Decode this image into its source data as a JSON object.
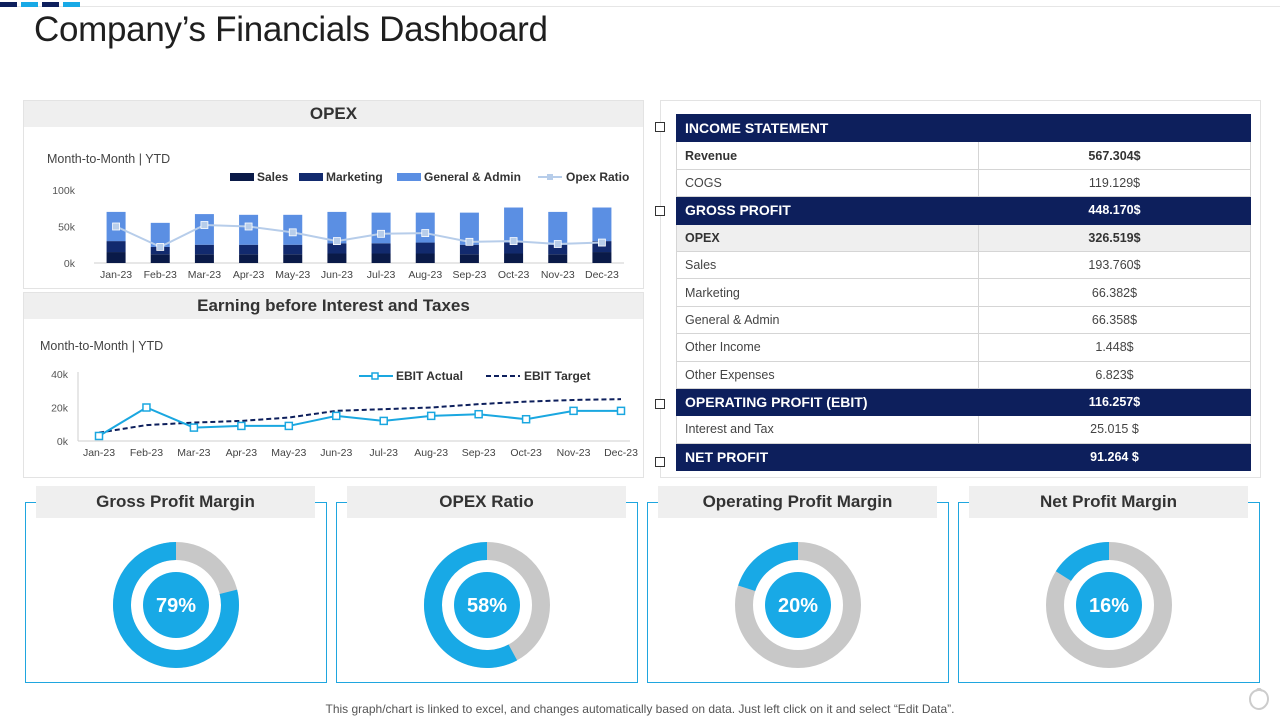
{
  "page": {
    "title": "Company’s Financials Dashboard",
    "footer": "This graph/chart is linked to excel,  and changes automatically based on data. Just left click on it and select “Edit Data”."
  },
  "colors": {
    "navy": "#0d1f5c",
    "sales": "#0a1a48",
    "marketing": "#122a6e",
    "general_admin": "#5b8fe3",
    "opex_ratio": "#b7cdea",
    "cyan": "#1aa7e0",
    "ring_bg": "#c8c8c8",
    "ring_fg": "#18a9e6"
  },
  "opex_panel": {
    "title": "OPEX",
    "subtitle": "Month-to-Month  | YTD"
  },
  "ebit_panel": {
    "title": "Earning before Interest  and Taxes",
    "subtitle": "Month-to-Month  | YTD"
  },
  "chart_data": [
    {
      "id": "opex",
      "type": "bar",
      "title": "OPEX",
      "categories": [
        "Jan-23",
        "Feb-23",
        "Mar-23",
        "Apr-23",
        "May-23",
        "Jun-23",
        "Jul-23",
        "Aug-23",
        "Sep-23",
        "Oct-23",
        "Nov-23",
        "Dec-23"
      ],
      "series": [
        {
          "name": "Sales",
          "kind": "stacked-bar",
          "values": [
            15,
            12,
            12,
            12,
            12,
            13,
            13,
            13,
            12,
            13,
            12,
            15
          ]
        },
        {
          "name": "Marketing",
          "kind": "stacked-bar",
          "values": [
            15,
            10,
            13,
            13,
            13,
            14,
            14,
            15,
            13,
            15,
            13,
            15
          ]
        },
        {
          "name": "General & Admin",
          "kind": "stacked-bar",
          "values": [
            40,
            33,
            42,
            41,
            41,
            43,
            42,
            41,
            44,
            48,
            45,
            46
          ]
        },
        {
          "name": "Opex Ratio",
          "kind": "line",
          "values": [
            50,
            22,
            52,
            50,
            42,
            30,
            40,
            41,
            29,
            30,
            26,
            28
          ]
        }
      ],
      "yticks": [
        "0k",
        "50k",
        "100k"
      ],
      "ylim": [
        0,
        100
      ],
      "legend": "top-right"
    },
    {
      "id": "ebit",
      "type": "line",
      "title": "Earning before Interest  and Taxes",
      "categories": [
        "Jan-23",
        "Feb-23",
        "Mar-23",
        "Apr-23",
        "May-23",
        "Jun-23",
        "Jul-23",
        "Aug-23",
        "Sep-23",
        "Oct-23",
        "Nov-23",
        "Dec-23"
      ],
      "series": [
        {
          "name": "EBIT Actual",
          "values": [
            3,
            20,
            8,
            9,
            9,
            15,
            12,
            15,
            16,
            13,
            18,
            18
          ]
        },
        {
          "name": "EBIT Target",
          "values": [
            5,
            9.5,
            11,
            12,
            14,
            18,
            19,
            20,
            22,
            23.5,
            24.5,
            25
          ]
        }
      ],
      "yticks": [
        "0k",
        "20k",
        "40k"
      ],
      "ylim": [
        0,
        40
      ],
      "legend": "top-right"
    },
    {
      "id": "kpis",
      "type": "pie",
      "series": [
        {
          "name": "Gross Profit Margin",
          "value": 79,
          "label": "79%"
        },
        {
          "name": "OPEX Ratio",
          "value": 58,
          "label": "58%"
        },
        {
          "name": "Operating Profit Margin",
          "value": 20,
          "label": "20%"
        },
        {
          "name": "Net Profit Margin",
          "value": 16,
          "label": "16%"
        }
      ]
    }
  ],
  "income_statement": {
    "header": "INCOME STATEMENT",
    "rows": [
      {
        "label": "Revenue",
        "value": "567.304$",
        "style": "bold"
      },
      {
        "label": "COGS",
        "value": "119.129$",
        "style": ""
      },
      {
        "label": "GROSS PROFIT",
        "value": "448.170$",
        "style": "hl"
      },
      {
        "label": "OPEX",
        "value": "326.519$",
        "style": "grey"
      },
      {
        "label": "Sales",
        "value": "193.760$",
        "style": ""
      },
      {
        "label": "Marketing",
        "value": "66.382$",
        "style": ""
      },
      {
        "label": "General & Admin",
        "value": "66.358$",
        "style": ""
      },
      {
        "label": "Other Income",
        "value": "1.448$",
        "style": ""
      },
      {
        "label": "Other Expenses",
        "value": "6.823$",
        "style": ""
      },
      {
        "label": "OPERATING  PROFIT (EBIT)",
        "value": "116.257$",
        "style": "hl"
      },
      {
        "label": "Interest and Tax",
        "value": "25.015 $",
        "style": ""
      },
      {
        "label": "NET PROFIT",
        "value": "91.264 $",
        "style": "hl"
      }
    ]
  }
}
